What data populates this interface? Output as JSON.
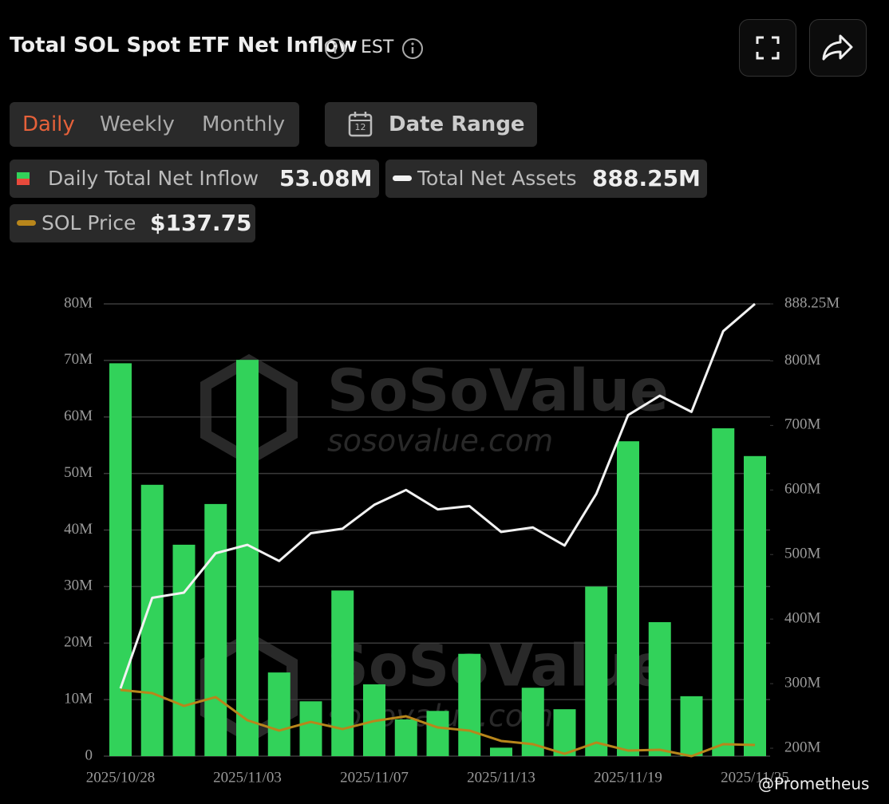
{
  "header": {
    "title": "Total SOL Spot ETF Net Inflow",
    "timezone": "EST"
  },
  "controls": {
    "tabs": [
      "Daily",
      "Weekly",
      "Monthly"
    ],
    "date_range": "Date Range",
    "calendar_day": "12"
  },
  "legend": [
    {
      "value_text": "53.08M"
    },
    {
      "value_text": "888.25M"
    },
    {
      "value_text": "$137.75"
    }
  ],
  "watermark": {
    "brand": "SoSoValue",
    "site": "sosovalue.com"
  },
  "credit": "@Prometheus",
  "chart_data": {
    "type": "bar",
    "categories": [
      "2025/10/28",
      null,
      null,
      null,
      "2025/11/03",
      null,
      null,
      null,
      "2025/11/07",
      null,
      null,
      null,
      "2025/11/13",
      null,
      null,
      null,
      "2025/11/19",
      null,
      null,
      null,
      "2025/11/25"
    ],
    "ylim": [
      0,
      80
    ],
    "yticks": [
      0,
      {
        "value": 10,
        "label": "10M"
      },
      {
        "value": 20,
        "label": "20M"
      },
      {
        "value": 30,
        "label": "30M"
      },
      {
        "value": 40,
        "label": "40M"
      },
      {
        "value": 50,
        "label": "50M"
      },
      {
        "value": 60,
        "label": "60M"
      },
      {
        "value": 70,
        "label": "70M"
      },
      {
        "value": 80,
        "label": "80M"
      }
    ],
    "y2lim": [
      187.7,
      888.25
    ],
    "y2ticks": [
      {
        "value": 200,
        "label": "200M"
      },
      {
        "value": 300,
        "label": "300M"
      },
      {
        "value": 400,
        "label": "400M"
      },
      {
        "value": 500,
        "label": "500M"
      },
      {
        "value": 600,
        "label": "600M"
      },
      {
        "value": 700,
        "label": "700M"
      },
      {
        "value": 800,
        "label": "800M"
      },
      {
        "value": 888.25,
        "label": "888.25M"
      }
    ],
    "y3lim": [
      126,
      602.3
    ],
    "grid": true,
    "series": [
      {
        "name": "Daily Total Net Inflow",
        "type": "bar",
        "color": "#32d25a",
        "values": [
          69.5,
          48.0,
          37.4,
          44.6,
          70.1,
          14.8,
          9.7,
          29.3,
          12.7,
          6.5,
          8.0,
          18.1,
          1.5,
          12.1,
          8.3,
          30.0,
          55.7,
          23.7,
          10.6,
          58.0,
          53.08
        ]
      },
      {
        "name": "Total Net Assets",
        "type": "line",
        "axis": "y2",
        "color": "#f2f2f2",
        "values": [
          292.6,
          433,
          441,
          502,
          515,
          490,
          533,
          540,
          577,
          600,
          570,
          575,
          535,
          542,
          514,
          594,
          716,
          746,
          721,
          846,
          888.25
        ]
      },
      {
        "name": "SOL Price",
        "type": "line",
        "axis": "y3",
        "color": "#b8861b",
        "values": [
          195.7,
          192.4,
          178.9,
          188.2,
          163.8,
          152.9,
          162.1,
          154.5,
          163.0,
          168.0,
          156.2,
          152.9,
          142.0,
          138.6,
          128.5,
          140.3,
          131.9,
          132.7,
          126.0,
          138.6,
          137.75
        ]
      }
    ]
  }
}
